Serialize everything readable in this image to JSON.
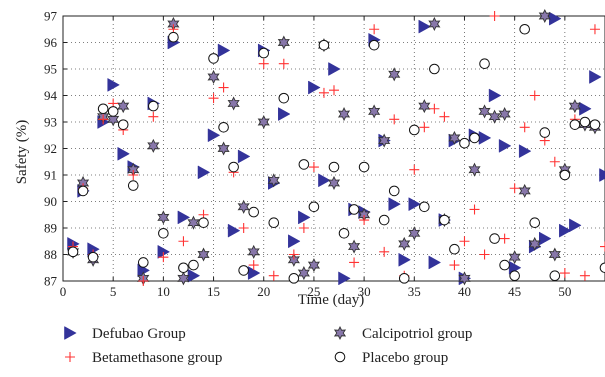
{
  "chart_data": {
    "type": "scatter",
    "title": "",
    "xlabel": "Time (day)",
    "ylabel": "Safety (%)",
    "xlim": [
      0,
      54
    ],
    "ylim": [
      87,
      97
    ],
    "xticks": [
      0,
      5,
      10,
      15,
      20,
      25,
      30,
      35,
      40,
      45,
      50
    ],
    "yticks": [
      87,
      88,
      89,
      90,
      91,
      92,
      93,
      94,
      95,
      96,
      97
    ],
    "grid": "dotted",
    "legend_position": "bottom",
    "series": [
      {
        "name": "Defubao Group",
        "marker": "triangle-right",
        "color": "#33339a",
        "points": [
          [
            1,
            88.4
          ],
          [
            2,
            90.4
          ],
          [
            3,
            88.2
          ],
          [
            4,
            93.0
          ],
          [
            5,
            94.4
          ],
          [
            6,
            91.8
          ],
          [
            7,
            91.3
          ],
          [
            8,
            87.4
          ],
          [
            9,
            93.7
          ],
          [
            10,
            88.1
          ],
          [
            11,
            96.0
          ],
          [
            12,
            89.4
          ],
          [
            13,
            87.2
          ],
          [
            14,
            91.1
          ],
          [
            15,
            92.5
          ],
          [
            16,
            95.7
          ],
          [
            17,
            88.9
          ],
          [
            18,
            91.7
          ],
          [
            19,
            87.3
          ],
          [
            20,
            95.7
          ],
          [
            21,
            90.7
          ],
          [
            22,
            93.3
          ],
          [
            23,
            88.5
          ],
          [
            24,
            89.4
          ],
          [
            25,
            94.3
          ],
          [
            26,
            90.8
          ],
          [
            27,
            95.0
          ],
          [
            28,
            87.1
          ],
          [
            29,
            89.7
          ],
          [
            30,
            89.6
          ],
          [
            31,
            96.1
          ],
          [
            32,
            92.3
          ],
          [
            33,
            89.9
          ],
          [
            34,
            87.8
          ],
          [
            35,
            89.9
          ],
          [
            36,
            96.6
          ],
          [
            37,
            87.7
          ],
          [
            38,
            89.3
          ],
          [
            39,
            92.3
          ],
          [
            40,
            87.1
          ],
          [
            41,
            92.5
          ],
          [
            42,
            92.4
          ],
          [
            43,
            94.0
          ],
          [
            44,
            92.1
          ],
          [
            45,
            87.5
          ],
          [
            46,
            91.9
          ],
          [
            47,
            88.3
          ],
          [
            48,
            88.6
          ],
          [
            49,
            96.9
          ],
          [
            50,
            88.9
          ],
          [
            51,
            89.1
          ],
          [
            52,
            93.5
          ],
          [
            53,
            94.7
          ],
          [
            54,
            91.0
          ]
        ]
      },
      {
        "name": "Calcipotriol group",
        "marker": "star",
        "color": "#333333",
        "fill": "#8877aa",
        "points": [
          [
            1,
            88.1
          ],
          [
            2,
            90.7
          ],
          [
            3,
            87.8
          ],
          [
            4,
            93.2
          ],
          [
            5,
            93.1
          ],
          [
            6,
            93.6
          ],
          [
            7,
            91.2
          ],
          [
            8,
            87.1
          ],
          [
            9,
            92.1
          ],
          [
            10,
            89.4
          ],
          [
            11,
            96.7
          ],
          [
            12,
            87.1
          ],
          [
            13,
            89.2
          ],
          [
            14,
            88.0
          ],
          [
            15,
            94.7
          ],
          [
            16,
            92.0
          ],
          [
            17,
            93.7
          ],
          [
            18,
            89.8
          ],
          [
            19,
            88.1
          ],
          [
            20,
            93.0
          ],
          [
            21,
            90.8
          ],
          [
            22,
            96.0
          ],
          [
            23,
            87.8
          ],
          [
            24,
            87.3
          ],
          [
            25,
            87.6
          ],
          [
            26,
            95.9
          ],
          [
            27,
            90.7
          ],
          [
            28,
            93.3
          ],
          [
            29,
            88.3
          ],
          [
            30,
            89.5
          ],
          [
            31,
            93.4
          ],
          [
            32,
            92.3
          ],
          [
            33,
            94.8
          ],
          [
            34,
            88.4
          ],
          [
            35,
            88.8
          ],
          [
            36,
            93.6
          ],
          [
            37,
            96.7
          ],
          [
            38,
            89.3
          ],
          [
            39,
            92.4
          ],
          [
            40,
            87.1
          ],
          [
            41,
            91.2
          ],
          [
            42,
            93.4
          ],
          [
            43,
            93.2
          ],
          [
            44,
            93.3
          ],
          [
            45,
            87.9
          ],
          [
            46,
            90.4
          ],
          [
            47,
            88.4
          ],
          [
            48,
            97.0
          ],
          [
            49,
            88.0
          ],
          [
            50,
            91.2
          ],
          [
            51,
            93.6
          ],
          [
            52,
            92.9
          ],
          [
            53,
            92.8
          ]
        ]
      },
      {
        "name": "Betamethasone group",
        "marker": "plus",
        "color": "#ff3333",
        "points": [
          [
            1,
            88.3
          ],
          [
            2,
            90.5
          ],
          [
            3,
            88.0
          ],
          [
            4,
            93.1
          ],
          [
            5,
            93.7
          ],
          [
            6,
            92.7
          ],
          [
            7,
            91.0
          ],
          [
            8,
            87.0
          ],
          [
            9,
            93.2
          ],
          [
            10,
            87.9
          ],
          [
            11,
            96.5
          ],
          [
            12,
            88.5
          ],
          [
            13,
            87.6
          ],
          [
            14,
            89.5
          ],
          [
            15,
            93.9
          ],
          [
            16,
            94.3
          ],
          [
            17,
            91.1
          ],
          [
            18,
            89.0
          ],
          [
            19,
            87.6
          ],
          [
            20,
            95.2
          ],
          [
            21,
            87.2
          ],
          [
            22,
            95.2
          ],
          [
            23,
            88.0
          ],
          [
            24,
            89.0
          ],
          [
            25,
            91.3
          ],
          [
            26,
            94.1
          ],
          [
            27,
            94.2
          ],
          [
            28,
            88.8
          ],
          [
            29,
            87.7
          ],
          [
            30,
            89.3
          ],
          [
            31,
            96.5
          ],
          [
            32,
            88.1
          ],
          [
            33,
            93.1
          ],
          [
            34,
            87.2
          ],
          [
            35,
            91.2
          ],
          [
            36,
            92.8
          ],
          [
            37,
            93.5
          ],
          [
            38,
            93.2
          ],
          [
            39,
            87.6
          ],
          [
            40,
            88.5
          ],
          [
            41,
            89.7
          ],
          [
            42,
            88.0
          ],
          [
            43,
            97.0
          ],
          [
            44,
            88.6
          ],
          [
            45,
            90.5
          ],
          [
            46,
            92.8
          ],
          [
            47,
            94.0
          ],
          [
            48,
            92.3
          ],
          [
            49,
            91.5
          ],
          [
            50,
            87.3
          ],
          [
            51,
            93.1
          ],
          [
            52,
            87.2
          ],
          [
            53,
            96.5
          ],
          [
            54,
            88.3
          ]
        ]
      },
      {
        "name": "Placebo group",
        "marker": "circle",
        "color": "#111111",
        "points": [
          [
            1,
            88.1
          ],
          [
            2,
            90.4
          ],
          [
            3,
            87.9
          ],
          [
            4,
            93.5
          ],
          [
            5,
            93.4
          ],
          [
            6,
            92.9
          ],
          [
            7,
            90.6
          ],
          [
            8,
            87.7
          ],
          [
            9,
            93.6
          ],
          [
            10,
            88.8
          ],
          [
            11,
            96.2
          ],
          [
            12,
            87.5
          ],
          [
            13,
            87.6
          ],
          [
            14,
            89.2
          ],
          [
            15,
            95.4
          ],
          [
            16,
            92.8
          ],
          [
            17,
            91.3
          ],
          [
            18,
            87.4
          ],
          [
            19,
            89.6
          ],
          [
            20,
            95.6
          ],
          [
            21,
            89.2
          ],
          [
            22,
            93.9
          ],
          [
            23,
            87.1
          ],
          [
            24,
            91.4
          ],
          [
            25,
            89.8
          ],
          [
            26,
            95.9
          ],
          [
            27,
            91.3
          ],
          [
            28,
            88.8
          ],
          [
            29,
            89.7
          ],
          [
            30,
            91.3
          ],
          [
            31,
            95.9
          ],
          [
            32,
            89.3
          ],
          [
            33,
            90.4
          ],
          [
            34,
            87.1
          ],
          [
            35,
            92.7
          ],
          [
            36,
            89.8
          ],
          [
            37,
            95.0
          ],
          [
            38,
            89.3
          ],
          [
            39,
            88.2
          ],
          [
            40,
            92.2
          ],
          [
            41,
            92.4
          ],
          [
            42,
            95.2
          ],
          [
            43,
            88.6
          ],
          [
            44,
            87.6
          ],
          [
            45,
            87.2
          ],
          [
            46,
            96.5
          ],
          [
            47,
            89.2
          ],
          [
            48,
            92.6
          ],
          [
            49,
            87.2
          ],
          [
            50,
            91.0
          ],
          [
            51,
            92.9
          ],
          [
            52,
            93.0
          ],
          [
            53,
            92.9
          ],
          [
            54,
            87.5
          ]
        ]
      }
    ]
  }
}
